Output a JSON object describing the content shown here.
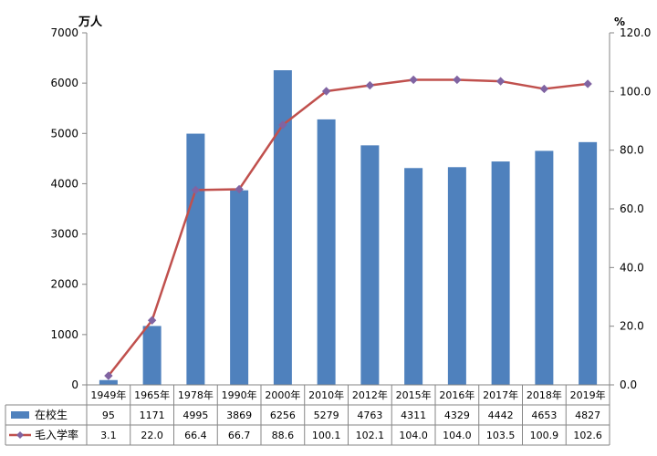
{
  "chart_data": {
    "type": "bar",
    "categories": [
      "1949年",
      "1965年",
      "1978年",
      "1990年",
      "2000年",
      "2010年",
      "2012年",
      "2015年",
      "2016年",
      "2017年",
      "2018年",
      "2019年"
    ],
    "series": [
      {
        "name": "在校生",
        "kind": "bar",
        "axis": "left",
        "color": "#4f81bd",
        "values": [
          95,
          1171,
          4995,
          3869,
          6256,
          5279,
          4763,
          4311,
          4329,
          4442,
          4653,
          4827
        ],
        "labels": [
          "95",
          "1171",
          "4995",
          "3869",
          "6256",
          "5279",
          "4763",
          "4311",
          "4329",
          "4442",
          "4653",
          "4827"
        ]
      },
      {
        "name": "毛入学率",
        "kind": "line",
        "axis": "right",
        "color": "#c0504d",
        "marker_color": "#8064a2",
        "values": [
          3.1,
          22.0,
          66.4,
          66.7,
          88.6,
          100.1,
          102.1,
          104.0,
          104.0,
          103.5,
          100.9,
          102.6
        ],
        "labels": [
          "3.1",
          "22.0",
          "66.4",
          "66.7",
          "88.6",
          "100.1",
          "102.1",
          "104.0",
          "104.0",
          "103.5",
          "100.9",
          "102.6"
        ]
      }
    ],
    "y_left": {
      "unit": "万人",
      "ylim": [
        0,
        7000
      ],
      "ticks": [
        "0",
        "1000",
        "2000",
        "3000",
        "4000",
        "5000",
        "6000",
        "7000"
      ]
    },
    "y_right": {
      "unit": "%",
      "ylim": [
        0,
        120
      ],
      "ticks": [
        "0.0",
        "20.0",
        "40.0",
        "60.0",
        "80.0",
        "100.0",
        "120.0"
      ]
    },
    "grid": false,
    "legend": "data-table-bottom"
  }
}
